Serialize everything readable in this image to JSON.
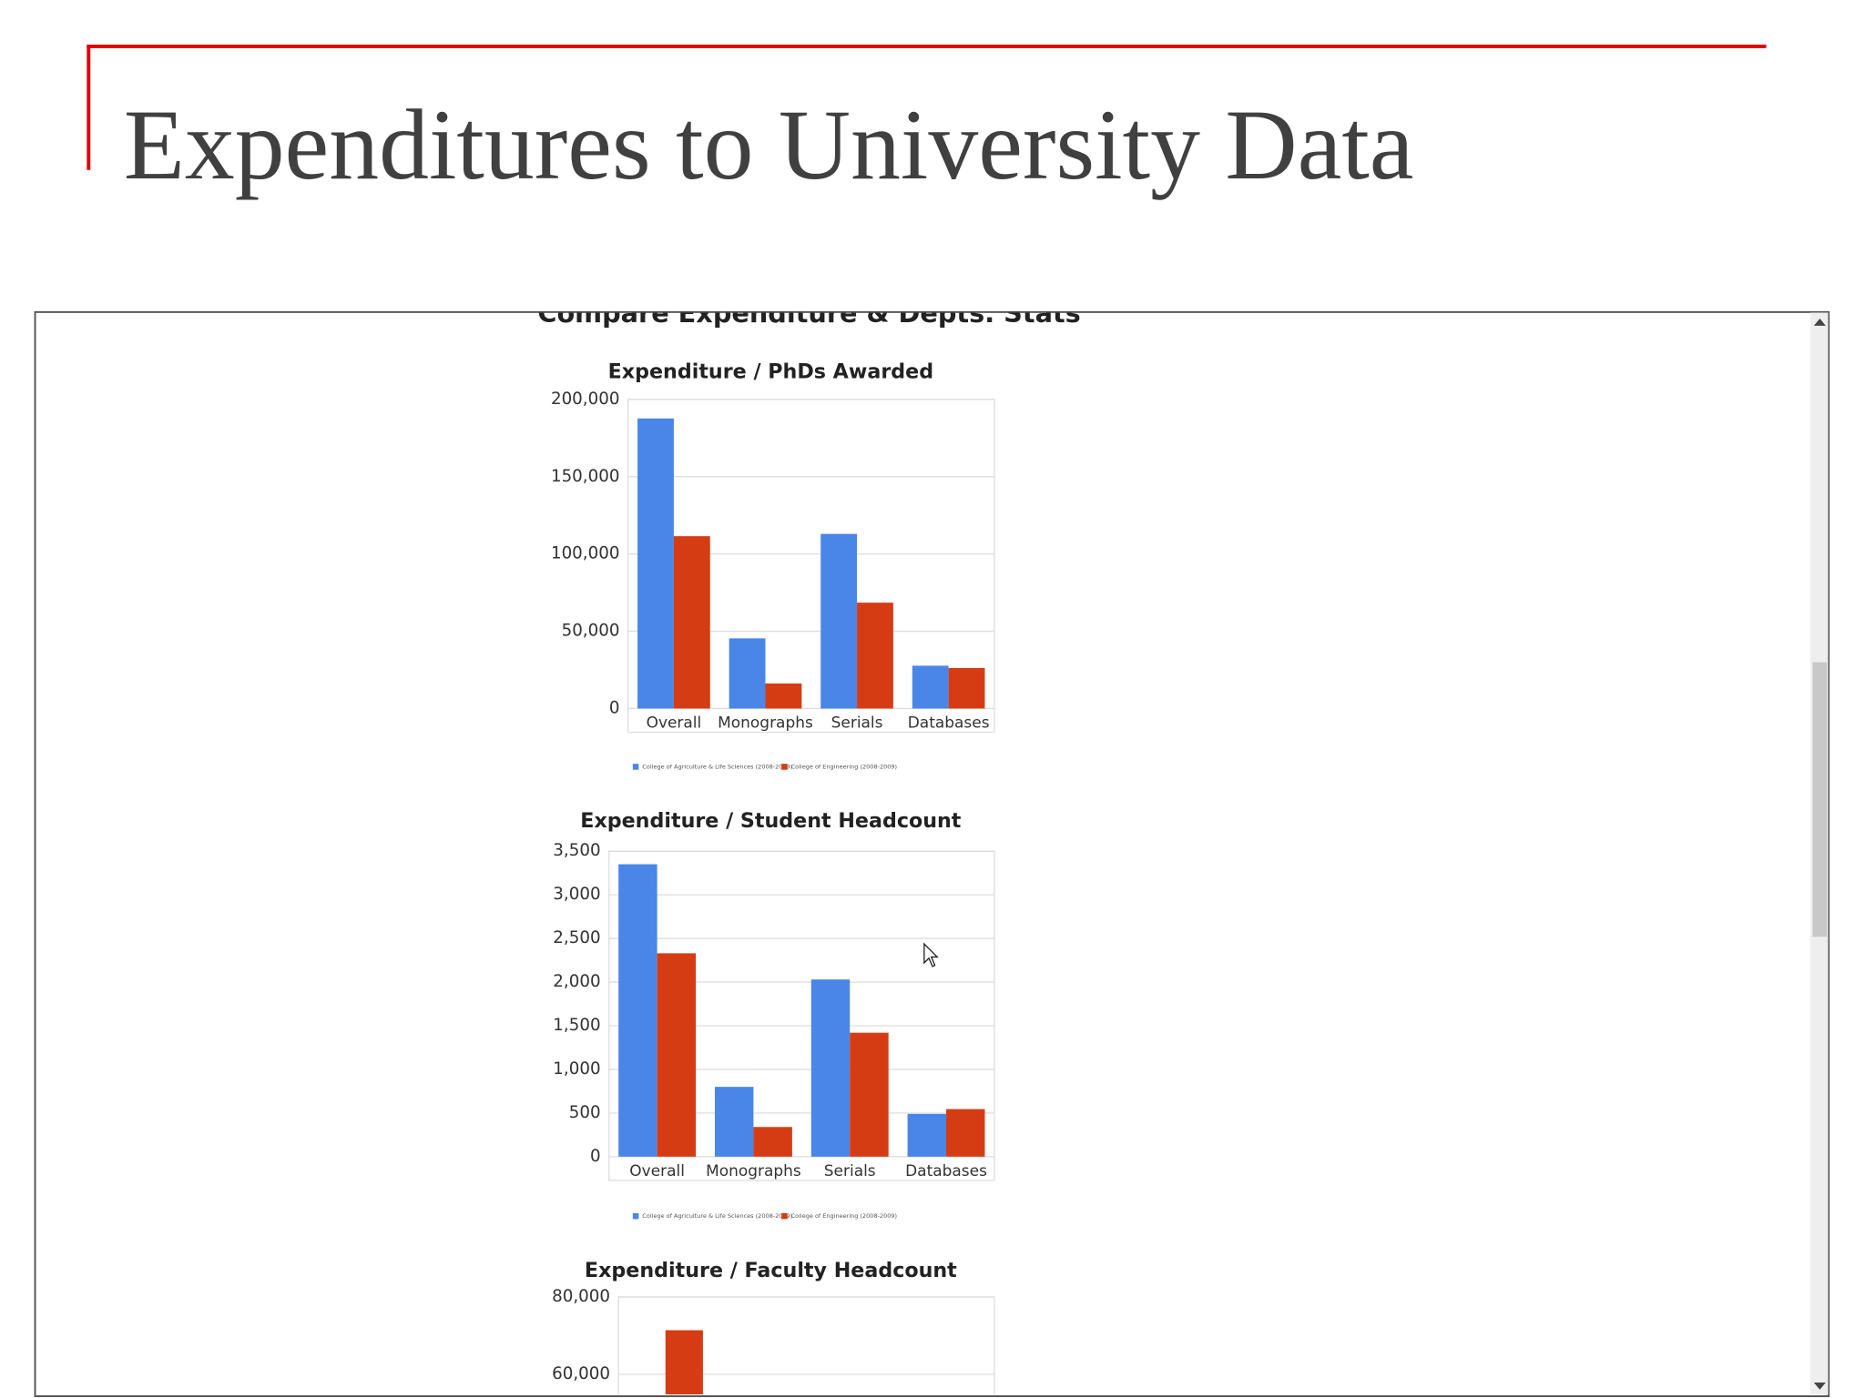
{
  "title": "Expenditures to University Data",
  "section_heading": "Compare Expenditure & Depts. Stats",
  "chart_data": [
    {
      "type": "bar",
      "title": "Expenditure / PhDs Awarded",
      "categories": [
        "Overall",
        "Monographs",
        "Serials",
        "Databases"
      ],
      "series": [
        {
          "name": "College of Agriculture & Life Sciences (2008-2009)",
          "color": "#4a86e8",
          "values": [
            187700,
            45400,
            113000,
            27700
          ]
        },
        {
          "name": "College of Engineering (2008-2009)",
          "color": "#d63c14",
          "values": [
            111500,
            16200,
            68500,
            26200
          ]
        }
      ],
      "ylim": [
        0,
        200000
      ],
      "yticks": [
        0,
        {
          "value": 50000,
          "label": "50,000"
        },
        {
          "value": 100000,
          "label": "100,000"
        },
        {
          "value": 150000,
          "label": "150,000"
        },
        {
          "value": 200000,
          "label": "200,000"
        }
      ],
      "grid": true
    },
    {
      "type": "bar",
      "title": "Expenditure / Student Headcount",
      "categories": [
        "Overall",
        "Monographs",
        "Serials",
        "Databases"
      ],
      "series": [
        {
          "name": "College of Agriculture & Life Sciences (2008-2009)",
          "color": "#4a86e8",
          "values": [
            3350,
            800,
            2030,
            490
          ]
        },
        {
          "name": "College of Engineering (2008-2009)",
          "color": "#d63c14",
          "values": [
            2330,
            340,
            1420,
            545
          ]
        }
      ],
      "ylim": [
        0,
        3500
      ],
      "yticks": [
        0,
        500,
        {
          "value": 1000,
          "label": "1,000"
        },
        {
          "value": 1500,
          "label": "1,500"
        },
        {
          "value": 2000,
          "label": "2,000"
        },
        {
          "value": 2500,
          "label": "2,500"
        },
        {
          "value": 3000,
          "label": "3,000"
        },
        {
          "value": 3500,
          "label": "3,500"
        }
      ],
      "grid": true
    },
    {
      "type": "bar",
      "title": "Expenditure / Faculty Headcount",
      "series": [
        {
          "color": "#d63c14",
          "values": [
            71400
          ]
        }
      ],
      "ylim": [
        54800,
        80000
      ],
      "yticks": [
        {
          "value": 60000,
          "label": "60,000"
        },
        {
          "value": 80000,
          "label": "80,000"
        }
      ],
      "grid": true
    }
  ]
}
